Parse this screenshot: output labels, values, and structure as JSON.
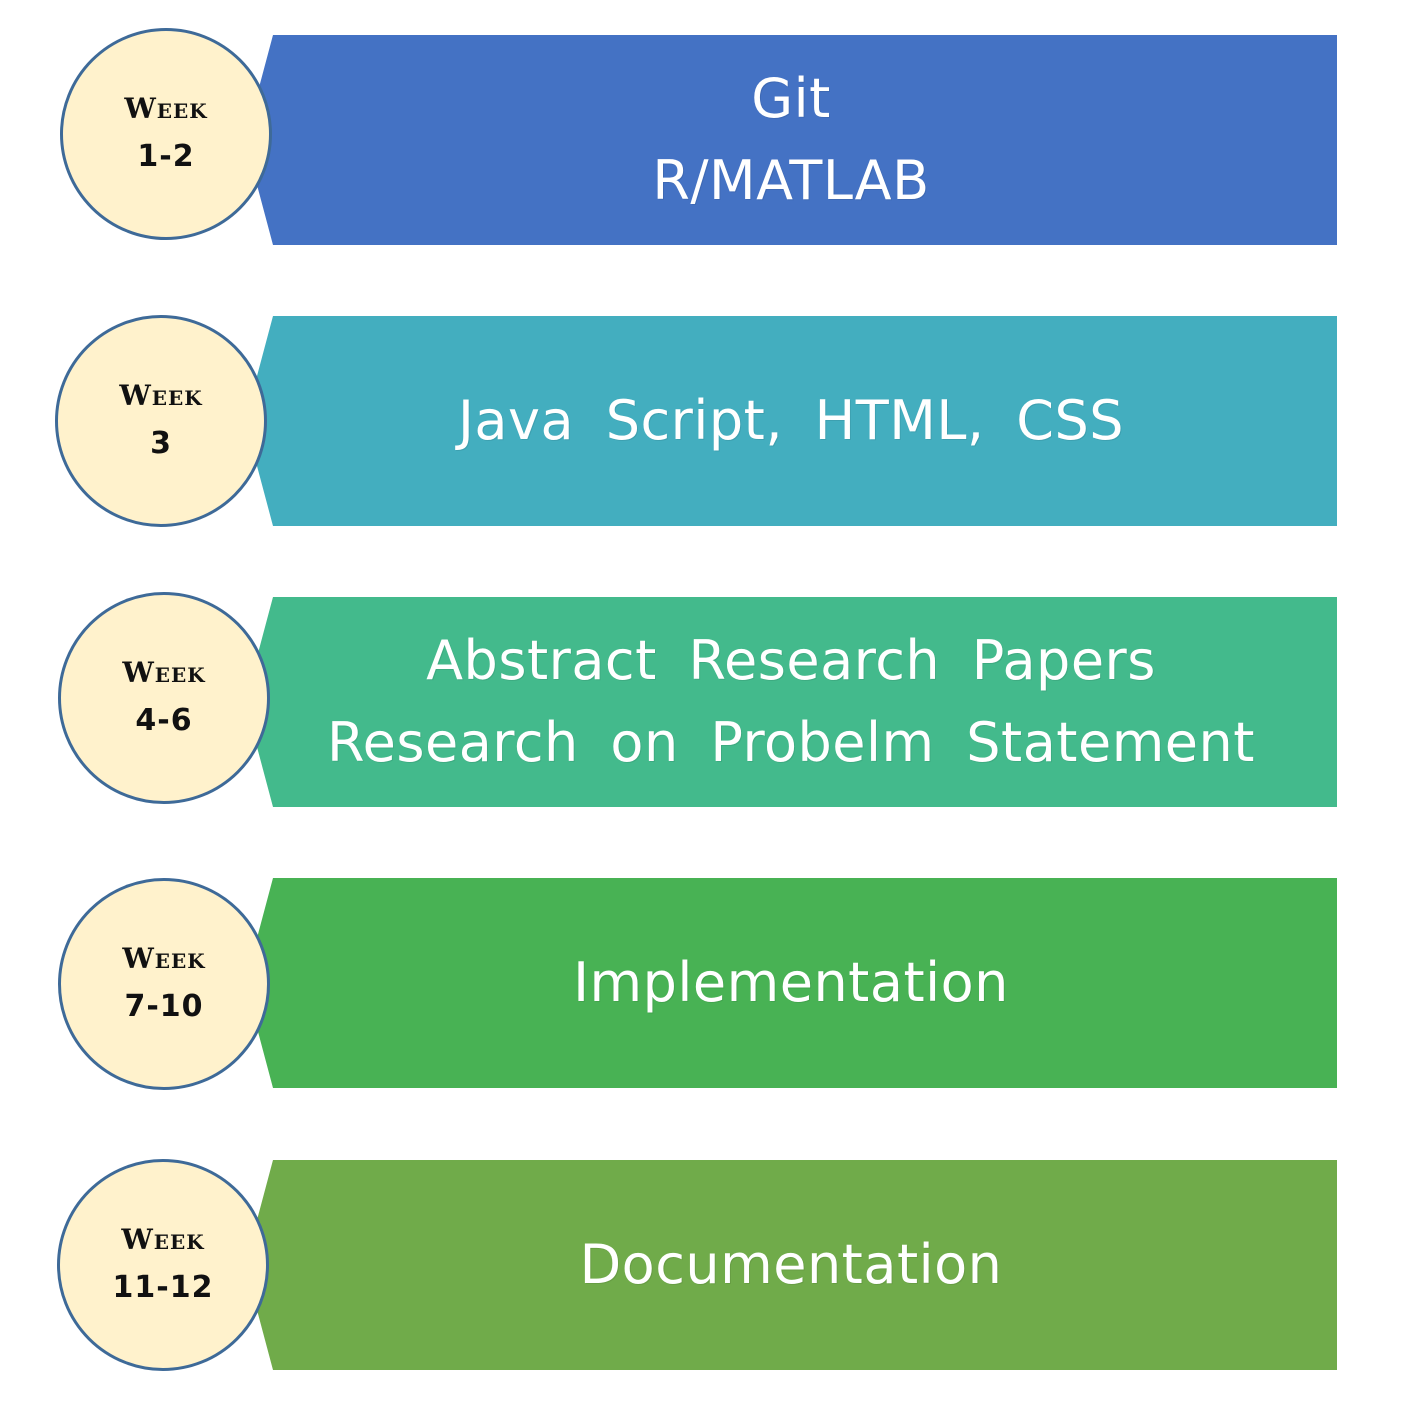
{
  "timeline": [
    {
      "week_label": "Week",
      "week_range": "1-2",
      "lines": [
        "Git",
        "R/MATLAB"
      ],
      "color": "#4472c4"
    },
    {
      "week_label": "Week",
      "week_range": "3",
      "lines": [
        "Java Script, HTML, CSS"
      ],
      "color": "#43aebf"
    },
    {
      "week_label": "Week",
      "week_range": "4-6",
      "lines": [
        "Abstract Research Papers",
        "Research on Probelm Statement"
      ],
      "color": "#43ba8c"
    },
    {
      "week_label": "Week",
      "week_range": "7-10",
      "lines": [
        "Implementation"
      ],
      "color": "#48b254"
    },
    {
      "week_label": "Week",
      "week_range": "11-12",
      "lines": [
        "Documentation"
      ],
      "color": "#70ab4a"
    }
  ]
}
